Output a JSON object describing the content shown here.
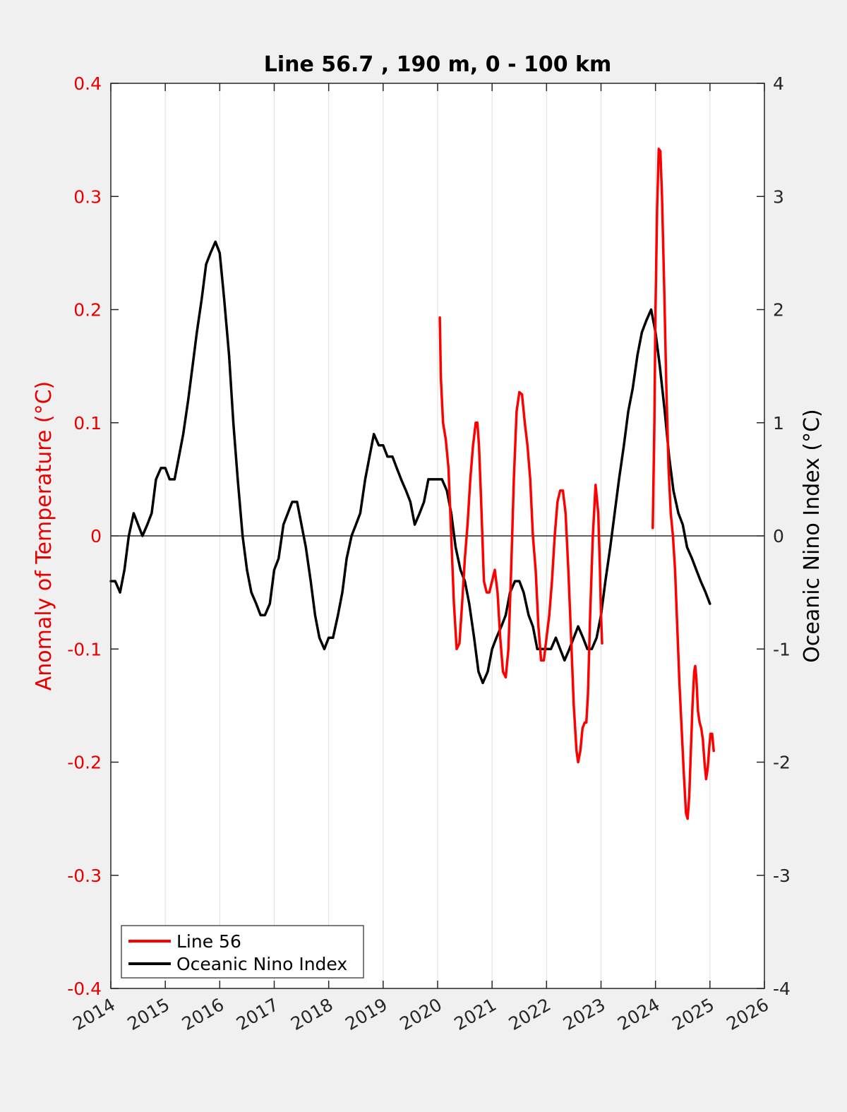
{
  "chart_data": {
    "type": "line",
    "title": "Line 56.7 , 190 m, 0 - 100 km",
    "xlabel": "",
    "ylabel_left": "Anomaly of Temperature (°C)",
    "ylabel_right": "Oceanic Nino Index (°C)",
    "xlim": [
      2014,
      2026
    ],
    "ylim_left": [
      -0.4,
      0.4
    ],
    "ylim_right": [
      -4,
      4
    ],
    "x_ticks": [
      "2014",
      "2015",
      "2016",
      "2017",
      "2018",
      "2019",
      "2020",
      "2021",
      "2022",
      "2023",
      "2024",
      "2025",
      "2026"
    ],
    "y_left_ticks": [
      "-0.4",
      "-0.3",
      "-0.2",
      "-0.1",
      "0",
      "0.1",
      "0.2",
      "0.3",
      "0.4"
    ],
    "y_right_ticks": [
      "-4",
      "-3",
      "-2",
      "-1",
      "0",
      "1",
      "2",
      "3",
      "4"
    ],
    "grid": "vertical",
    "zero_line": true,
    "legend_position": "bottom-left",
    "colors": {
      "left_axis": "#e60000",
      "line56": "#ff0000",
      "oni": "#000000"
    },
    "series": [
      {
        "name": "Line 56",
        "axis": "left",
        "color": "#ff0000",
        "segments": [
          [
            [
              2020.04,
              0.193
            ],
            [
              2020.06,
              0.14
            ],
            [
              2020.1,
              0.1
            ],
            [
              2020.15,
              0.085
            ],
            [
              2020.2,
              0.06
            ],
            [
              2020.25,
              0.0
            ],
            [
              2020.3,
              -0.06
            ],
            [
              2020.35,
              -0.1
            ],
            [
              2020.4,
              -0.095
            ],
            [
              2020.45,
              -0.06
            ],
            [
              2020.5,
              -0.02
            ],
            [
              2020.55,
              0.01
            ],
            [
              2020.6,
              0.05
            ],
            [
              2020.65,
              0.08
            ],
            [
              2020.7,
              0.1
            ],
            [
              2020.73,
              0.1
            ],
            [
              2020.76,
              0.08
            ],
            [
              2020.8,
              0.03
            ],
            [
              2020.85,
              -0.04
            ],
            [
              2020.9,
              -0.05
            ],
            [
              2020.95,
              -0.05
            ],
            [
              2021.0,
              -0.04
            ],
            [
              2021.05,
              -0.03
            ],
            [
              2021.1,
              -0.05
            ],
            [
              2021.15,
              -0.09
            ],
            [
              2021.2,
              -0.12
            ],
            [
              2021.25,
              -0.125
            ],
            [
              2021.3,
              -0.1
            ],
            [
              2021.35,
              -0.03
            ],
            [
              2021.4,
              0.05
            ],
            [
              2021.45,
              0.11
            ],
            [
              2021.5,
              0.127
            ],
            [
              2021.55,
              0.125
            ],
            [
              2021.6,
              0.1
            ],
            [
              2021.65,
              0.08
            ],
            [
              2021.7,
              0.05
            ],
            [
              2021.75,
              0.0
            ],
            [
              2021.8,
              -0.03
            ],
            [
              2021.85,
              -0.08
            ],
            [
              2021.9,
              -0.11
            ],
            [
              2021.95,
              -0.11
            ],
            [
              2022.0,
              -0.09
            ],
            [
              2022.05,
              -0.07
            ],
            [
              2022.1,
              -0.04
            ],
            [
              2022.15,
              0.0
            ],
            [
              2022.2,
              0.03
            ],
            [
              2022.25,
              0.04
            ],
            [
              2022.3,
              0.04
            ],
            [
              2022.35,
              0.02
            ],
            [
              2022.4,
              -0.03
            ],
            [
              2022.45,
              -0.09
            ],
            [
              2022.5,
              -0.15
            ],
            [
              2022.55,
              -0.19
            ],
            [
              2022.58,
              -0.2
            ],
            [
              2022.62,
              -0.19
            ],
            [
              2022.66,
              -0.17
            ],
            [
              2022.7,
              -0.165
            ],
            [
              2022.73,
              -0.165
            ],
            [
              2022.76,
              -0.14
            ],
            [
              2022.8,
              -0.07
            ],
            [
              2022.85,
              0.0
            ],
            [
              2022.9,
              0.045
            ],
            [
              2022.95,
              0.02
            ],
            [
              2022.98,
              -0.03
            ],
            [
              2023.0,
              -0.07
            ],
            [
              2023.02,
              -0.095
            ]
          ],
          [
            [
              2023.95,
              0.007
            ],
            [
              2023.98,
              0.1
            ],
            [
              2024.0,
              0.2
            ],
            [
              2024.03,
              0.29
            ],
            [
              2024.06,
              0.342
            ],
            [
              2024.09,
              0.34
            ],
            [
              2024.12,
              0.3
            ],
            [
              2024.16,
              0.22
            ],
            [
              2024.2,
              0.13
            ],
            [
              2024.24,
              0.06
            ],
            [
              2024.28,
              0.02
            ],
            [
              2024.32,
              0.0
            ],
            [
              2024.36,
              -0.03
            ],
            [
              2024.4,
              -0.08
            ],
            [
              2024.44,
              -0.13
            ],
            [
              2024.48,
              -0.17
            ],
            [
              2024.52,
              -0.21
            ],
            [
              2024.56,
              -0.245
            ],
            [
              2024.59,
              -0.25
            ],
            [
              2024.62,
              -0.23
            ],
            [
              2024.65,
              -0.19
            ],
            [
              2024.68,
              -0.15
            ],
            [
              2024.71,
              -0.12
            ],
            [
              2024.73,
              -0.115
            ],
            [
              2024.75,
              -0.125
            ],
            [
              2024.78,
              -0.155
            ],
            [
              2024.81,
              -0.165
            ],
            [
              2024.84,
              -0.17
            ],
            [
              2024.87,
              -0.18
            ],
            [
              2024.9,
              -0.2
            ],
            [
              2024.93,
              -0.215
            ],
            [
              2024.96,
              -0.205
            ],
            [
              2024.99,
              -0.185
            ],
            [
              2025.01,
              -0.175
            ],
            [
              2025.04,
              -0.175
            ],
            [
              2025.07,
              -0.19
            ]
          ]
        ]
      },
      {
        "name": "Oceanic Nino Index",
        "axis": "right",
        "color": "#000000",
        "segments": [
          [
            [
              2014.0,
              -0.4
            ],
            [
              2014.08,
              -0.4
            ],
            [
              2014.17,
              -0.5
            ],
            [
              2014.25,
              -0.3
            ],
            [
              2014.33,
              0.0
            ],
            [
              2014.42,
              0.2
            ],
            [
              2014.5,
              0.1
            ],
            [
              2014.58,
              0.0
            ],
            [
              2014.67,
              0.1
            ],
            [
              2014.75,
              0.2
            ],
            [
              2014.83,
              0.5
            ],
            [
              2014.92,
              0.6
            ],
            [
              2015.0,
              0.6
            ],
            [
              2015.08,
              0.5
            ],
            [
              2015.17,
              0.5
            ],
            [
              2015.25,
              0.7
            ],
            [
              2015.33,
              0.9
            ],
            [
              2015.42,
              1.2
            ],
            [
              2015.5,
              1.5
            ],
            [
              2015.58,
              1.8
            ],
            [
              2015.67,
              2.1
            ],
            [
              2015.75,
              2.4
            ],
            [
              2015.83,
              2.5
            ],
            [
              2015.92,
              2.6
            ],
            [
              2016.0,
              2.5
            ],
            [
              2016.08,
              2.1
            ],
            [
              2016.17,
              1.6
            ],
            [
              2016.25,
              1.0
            ],
            [
              2016.33,
              0.5
            ],
            [
              2016.42,
              0.0
            ],
            [
              2016.5,
              -0.3
            ],
            [
              2016.58,
              -0.5
            ],
            [
              2016.67,
              -0.6
            ],
            [
              2016.75,
              -0.7
            ],
            [
              2016.83,
              -0.7
            ],
            [
              2016.92,
              -0.6
            ],
            [
              2017.0,
              -0.3
            ],
            [
              2017.08,
              -0.2
            ],
            [
              2017.17,
              0.1
            ],
            [
              2017.25,
              0.2
            ],
            [
              2017.33,
              0.3
            ],
            [
              2017.42,
              0.3
            ],
            [
              2017.5,
              0.1
            ],
            [
              2017.58,
              -0.1
            ],
            [
              2017.67,
              -0.4
            ],
            [
              2017.75,
              -0.7
            ],
            [
              2017.83,
              -0.9
            ],
            [
              2017.92,
              -1.0
            ],
            [
              2018.0,
              -0.9
            ],
            [
              2018.08,
              -0.9
            ],
            [
              2018.17,
              -0.7
            ],
            [
              2018.25,
              -0.5
            ],
            [
              2018.33,
              -0.2
            ],
            [
              2018.42,
              0.0
            ],
            [
              2018.5,
              0.1
            ],
            [
              2018.58,
              0.2
            ],
            [
              2018.67,
              0.5
            ],
            [
              2018.75,
              0.7
            ],
            [
              2018.83,
              0.9
            ],
            [
              2018.92,
              0.8
            ],
            [
              2019.0,
              0.8
            ],
            [
              2019.08,
              0.7
            ],
            [
              2019.17,
              0.7
            ],
            [
              2019.25,
              0.6
            ],
            [
              2019.33,
              0.5
            ],
            [
              2019.42,
              0.4
            ],
            [
              2019.5,
              0.3
            ],
            [
              2019.58,
              0.1
            ],
            [
              2019.67,
              0.2
            ],
            [
              2019.75,
              0.3
            ],
            [
              2019.83,
              0.5
            ],
            [
              2019.92,
              0.5
            ],
            [
              2020.0,
              0.5
            ],
            [
              2020.08,
              0.5
            ],
            [
              2020.17,
              0.4
            ],
            [
              2020.25,
              0.2
            ],
            [
              2020.33,
              -0.1
            ],
            [
              2020.42,
              -0.3
            ],
            [
              2020.5,
              -0.4
            ],
            [
              2020.58,
              -0.6
            ],
            [
              2020.67,
              -0.9
            ],
            [
              2020.75,
              -1.2
            ],
            [
              2020.83,
              -1.3
            ],
            [
              2020.92,
              -1.2
            ],
            [
              2021.0,
              -1.0
            ],
            [
              2021.08,
              -0.9
            ],
            [
              2021.17,
              -0.8
            ],
            [
              2021.25,
              -0.7
            ],
            [
              2021.33,
              -0.5
            ],
            [
              2021.42,
              -0.4
            ],
            [
              2021.5,
              -0.4
            ],
            [
              2021.58,
              -0.5
            ],
            [
              2021.67,
              -0.7
            ],
            [
              2021.75,
              -0.8
            ],
            [
              2021.83,
              -1.0
            ],
            [
              2021.92,
              -1.0
            ],
            [
              2022.0,
              -1.0
            ],
            [
              2022.08,
              -1.0
            ],
            [
              2022.17,
              -0.9
            ],
            [
              2022.25,
              -1.0
            ],
            [
              2022.33,
              -1.1
            ],
            [
              2022.42,
              -1.0
            ],
            [
              2022.5,
              -0.9
            ],
            [
              2022.58,
              -0.8
            ],
            [
              2022.67,
              -0.9
            ],
            [
              2022.75,
              -1.0
            ],
            [
              2022.83,
              -1.0
            ],
            [
              2022.92,
              -0.9
            ],
            [
              2023.0,
              -0.7
            ],
            [
              2023.08,
              -0.4
            ],
            [
              2023.17,
              -0.1
            ],
            [
              2023.25,
              0.2
            ],
            [
              2023.33,
              0.5
            ],
            [
              2023.42,
              0.8
            ],
            [
              2023.5,
              1.1
            ],
            [
              2023.58,
              1.3
            ],
            [
              2023.67,
              1.6
            ],
            [
              2023.75,
              1.8
            ],
            [
              2023.83,
              1.9
            ],
            [
              2023.92,
              2.0
            ],
            [
              2024.0,
              1.8
            ],
            [
              2024.08,
              1.5
            ],
            [
              2024.17,
              1.1
            ],
            [
              2024.25,
              0.7
            ],
            [
              2024.33,
              0.4
            ],
            [
              2024.42,
              0.2
            ],
            [
              2024.5,
              0.1
            ],
            [
              2024.58,
              -0.1
            ],
            [
              2024.67,
              -0.2
            ],
            [
              2024.75,
              -0.3
            ],
            [
              2024.83,
              -0.4
            ],
            [
              2024.92,
              -0.5
            ],
            [
              2025.0,
              -0.6
            ]
          ]
        ]
      }
    ]
  }
}
